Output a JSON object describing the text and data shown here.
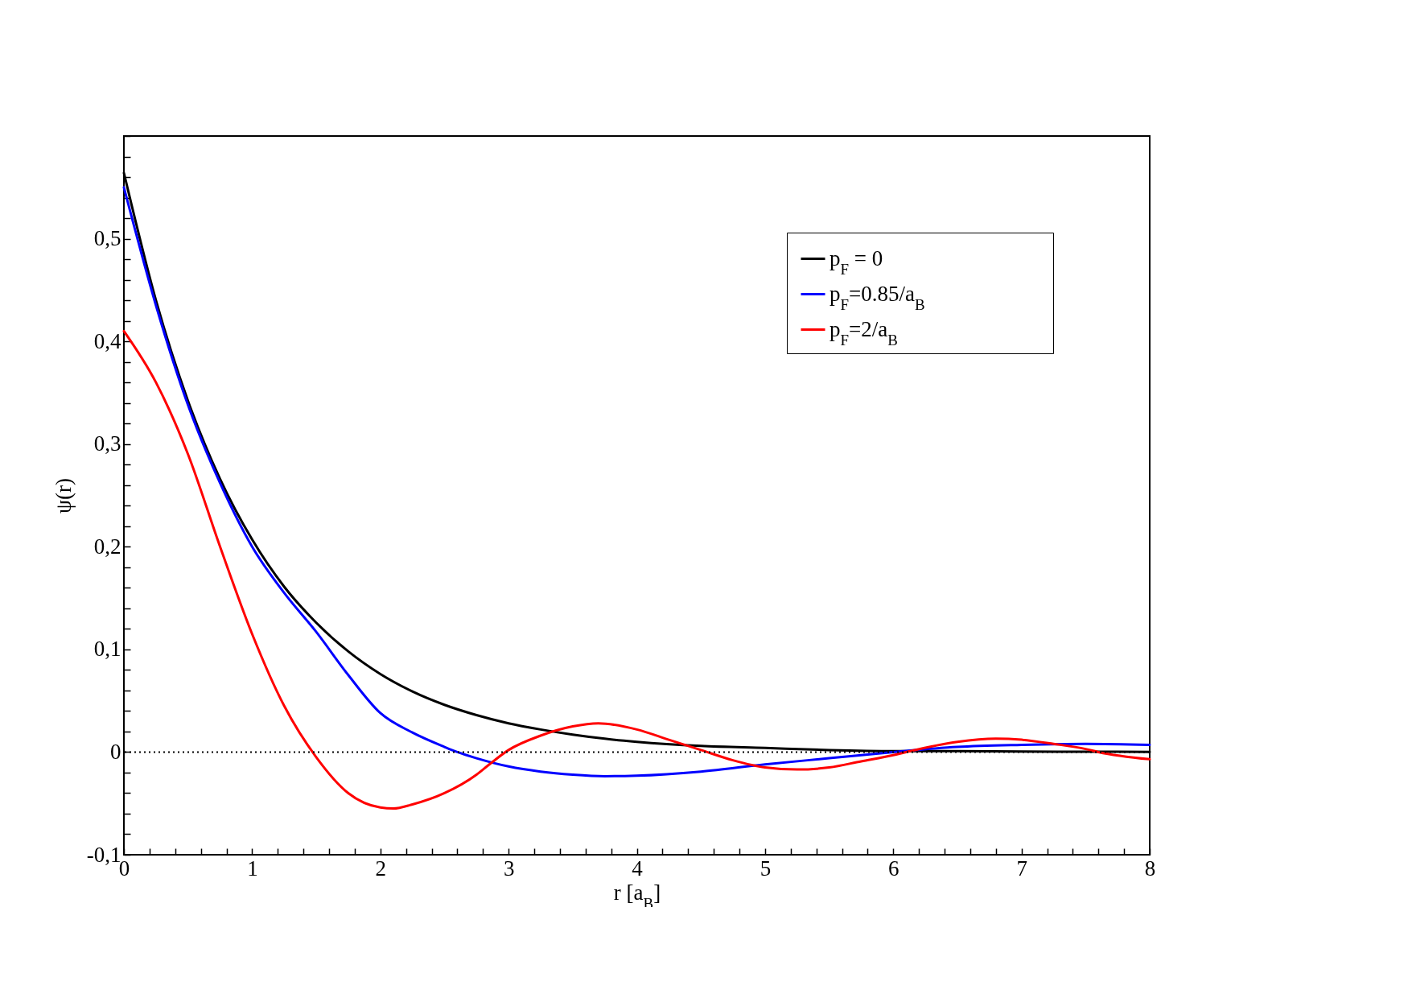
{
  "chart_data": {
    "type": "line",
    "xlabel": "r [a$_{B}$]",
    "ylabel": "ψ(r)",
    "xlim": [
      0,
      8
    ],
    "ylim": [
      -0.1,
      0.6
    ],
    "xticks": [
      0,
      {
        "value": 0.2,
        "label": null
      },
      {
        "value": 0.4,
        "label": null
      },
      {
        "value": 0.6,
        "label": null
      },
      {
        "value": 0.8,
        "label": null
      },
      1,
      {
        "value": 1.2,
        "label": null
      },
      {
        "value": 1.4,
        "label": null
      },
      {
        "value": 1.6,
        "label": null
      },
      {
        "value": 1.8,
        "label": null
      },
      2,
      {
        "value": 2.2,
        "label": null
      },
      {
        "value": 2.4,
        "label": null
      },
      {
        "value": 2.6,
        "label": null
      },
      {
        "value": 2.8,
        "label": null
      },
      3,
      {
        "value": 3.2,
        "label": null
      },
      {
        "value": 3.4,
        "label": null
      },
      {
        "value": 3.6,
        "label": null
      },
      {
        "value": 3.8,
        "label": null
      },
      4,
      {
        "value": 4.2,
        "label": null
      },
      {
        "value": 4.4,
        "label": null
      },
      {
        "value": 4.6,
        "label": null
      },
      {
        "value": 4.8,
        "label": null
      },
      5,
      {
        "value": 5.2,
        "label": null
      },
      {
        "value": 5.4,
        "label": null
      },
      {
        "value": 5.6,
        "label": null
      },
      {
        "value": 5.8,
        "label": null
      },
      6,
      {
        "value": 6.2,
        "label": null
      },
      {
        "value": 6.4,
        "label": null
      },
      {
        "value": 6.6,
        "label": null
      },
      {
        "value": 6.8,
        "label": null
      },
      7,
      {
        "value": 7.2,
        "label": null
      },
      {
        "value": 7.4,
        "label": null
      },
      {
        "value": 7.6,
        "label": null
      },
      {
        "value": 7.8,
        "label": null
      },
      8
    ],
    "yticks": [
      {
        "value": -0.1,
        "label": "-0,1"
      },
      {
        "value": -0.08,
        "label": null
      },
      {
        "value": -0.06,
        "label": null
      },
      {
        "value": -0.04,
        "label": null
      },
      {
        "value": -0.02,
        "label": null
      },
      0,
      {
        "value": 0.02,
        "label": null
      },
      {
        "value": 0.04,
        "label": null
      },
      {
        "value": 0.06,
        "label": null
      },
      {
        "value": 0.08,
        "label": null
      },
      {
        "value": 0.1,
        "label": "0,1"
      },
      {
        "value": 0.12,
        "label": null
      },
      {
        "value": 0.14,
        "label": null
      },
      {
        "value": 0.16,
        "label": null
      },
      {
        "value": 0.18,
        "label": null
      },
      {
        "value": 0.2,
        "label": "0,2"
      },
      {
        "value": 0.22,
        "label": null
      },
      {
        "value": 0.24,
        "label": null
      },
      {
        "value": 0.26,
        "label": null
      },
      {
        "value": 0.28,
        "label": null
      },
      {
        "value": 0.3,
        "label": "0,3"
      },
      {
        "value": 0.32,
        "label": null
      },
      {
        "value": 0.34,
        "label": null
      },
      {
        "value": 0.36,
        "label": null
      },
      {
        "value": 0.38,
        "label": null
      },
      {
        "value": 0.4,
        "label": "0,4"
      },
      {
        "value": 0.42,
        "label": null
      },
      {
        "value": 0.44,
        "label": null
      },
      {
        "value": 0.46,
        "label": null
      },
      {
        "value": 0.48,
        "label": null
      },
      {
        "value": 0.5,
        "label": "0,5"
      },
      {
        "value": 0.52,
        "label": null
      },
      {
        "value": 0.54,
        "label": null
      },
      {
        "value": 0.56,
        "label": null
      },
      {
        "value": 0.58,
        "label": null
      },
      {
        "value": 0.6,
        "label": null
      }
    ],
    "legend": "top right",
    "grid": false,
    "marker": "none",
    "line_style": "solid",
    "ref_lines": [
      {
        "axis": "y",
        "value": 0,
        "color": "#000000",
        "line_style": "dotted"
      }
    ],
    "series": [
      {
        "name": "p$_{F}$ = 0",
        "color": "#000000",
        "x": [
          0,
          0.25,
          0.5,
          0.75,
          1,
          1.25,
          1.5,
          1.75,
          2,
          2.25,
          2.5,
          2.75,
          3,
          3.25,
          3.5,
          3.75,
          4,
          4.5,
          5,
          5.5,
          6,
          6.5,
          7,
          7.5,
          8
        ],
        "values": [
          0.564,
          0.44,
          0.342,
          0.266,
          0.207,
          0.161,
          0.126,
          0.098,
          0.076,
          0.059,
          0.046,
          0.036,
          0.028,
          0.022,
          0.017,
          0.013,
          0.01,
          0.006,
          0.004,
          0.002,
          0.001,
          0.001,
          0.0005,
          0.0003,
          0.0002
        ]
      },
      {
        "name": "p$_{F}$=0.85/a$_{B}$",
        "color": "#0000ff",
        "x": [
          0,
          0.25,
          0.5,
          0.75,
          1,
          1.25,
          1.5,
          1.75,
          2,
          2.25,
          2.5,
          2.6,
          2.75,
          3,
          3.25,
          3.5,
          3.75,
          4,
          4.5,
          5,
          5.5,
          6,
          6.5,
          7,
          7.5,
          8
        ],
        "values": [
          0.55,
          0.435,
          0.338,
          0.262,
          0.2,
          0.155,
          0.117,
          0.075,
          0.038,
          0.019,
          0.005,
          0,
          -0.006,
          -0.014,
          -0.019,
          -0.022,
          -0.0235,
          -0.023,
          -0.019,
          -0.012,
          -0.006,
          0,
          0.005,
          0.007,
          0.008,
          0.007
        ]
      },
      {
        "name": "p$_{F}$=2/a$_{B}$",
        "color": "#ff0000",
        "x": [
          0,
          0.25,
          0.5,
          0.75,
          1,
          1.25,
          1.5,
          1.75,
          2,
          2.1,
          2.25,
          2.5,
          2.75,
          2.85,
          3,
          3.25,
          3.5,
          3.7,
          4,
          4.25,
          4.5,
          4.75,
          5,
          5.25,
          5.5,
          5.75,
          6,
          6.1,
          6.5,
          6.8,
          7,
          7.25,
          7.5,
          7.6,
          8
        ],
        "values": [
          0.41,
          0.36,
          0.29,
          0.2,
          0.115,
          0.045,
          -0.005,
          -0.04,
          -0.054,
          -0.055,
          -0.051,
          -0.04,
          -0.022,
          -0.012,
          0.002,
          0.016,
          0.025,
          0.028,
          0.022,
          0.012,
          0.002,
          -0.008,
          -0.015,
          -0.017,
          -0.015,
          -0.009,
          -0.003,
          0,
          0.01,
          0.013,
          0.012,
          0.008,
          0.003,
          0,
          -0.007
        ]
      }
    ]
  }
}
